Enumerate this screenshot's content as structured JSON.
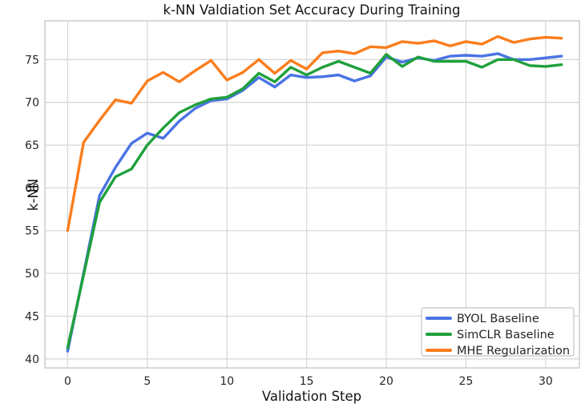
{
  "chart_data": {
    "type": "line",
    "title": "k-NN Valdiation Set Accuracy During Training",
    "xlabel": "Validation Step",
    "ylabel": "k-NN",
    "x": [
      0,
      1,
      2,
      3,
      4,
      5,
      6,
      7,
      8,
      9,
      10,
      11,
      12,
      13,
      14,
      15,
      16,
      17,
      18,
      19,
      20,
      21,
      22,
      23,
      24,
      25,
      26,
      27,
      28,
      29,
      30,
      31
    ],
    "series": [
      {
        "name": "BYOL Baseline",
        "color": "#4a73e4",
        "values": [
          40.9,
          50.0,
          59.1,
          62.4,
          65.2,
          66.4,
          65.8,
          67.8,
          69.3,
          70.2,
          70.4,
          71.4,
          72.9,
          71.8,
          73.2,
          72.9,
          73.0,
          73.2,
          72.5,
          73.1,
          75.3,
          74.7,
          75.2,
          74.9,
          75.4,
          75.5,
          75.4,
          75.7,
          75.0,
          75.0,
          75.2,
          75.4
        ]
      },
      {
        "name": "SimCLR Baseline",
        "color": "#1fa03c",
        "values": [
          41.3,
          49.8,
          58.3,
          61.3,
          62.2,
          65.0,
          67.0,
          68.8,
          69.7,
          70.4,
          70.6,
          71.6,
          73.4,
          72.4,
          74.1,
          73.2,
          74.1,
          74.8,
          74.1,
          73.4,
          75.6,
          74.2,
          75.3,
          74.8,
          74.8,
          74.8,
          74.1,
          75.0,
          75.0,
          74.3,
          74.2,
          74.4
        ]
      },
      {
        "name": "MHE Regularization",
        "color": "#fb7d1c",
        "values": [
          55.0,
          65.3,
          67.9,
          70.3,
          69.9,
          72.5,
          73.5,
          72.4,
          73.7,
          74.9,
          72.6,
          73.5,
          75.0,
          73.4,
          74.9,
          73.9,
          75.8,
          76.0,
          75.7,
          76.5,
          76.4,
          77.1,
          76.9,
          77.2,
          76.6,
          77.1,
          76.8,
          77.7,
          77.0,
          77.4,
          77.6,
          77.5
        ]
      }
    ],
    "xticks": [
      0,
      5,
      10,
      15,
      20,
      25,
      30
    ],
    "yticks": [
      40,
      45,
      50,
      55,
      60,
      65,
      70,
      75
    ],
    "xlim": [
      -1.43,
      32.12
    ],
    "ylim": [
      38.95,
      79.53
    ],
    "grid": true,
    "legend_position": "lower right",
    "colors": {
      "background": "#ffffff",
      "grid": "#d9d9d9",
      "spine": "#cccccc",
      "text": "#262626"
    }
  }
}
